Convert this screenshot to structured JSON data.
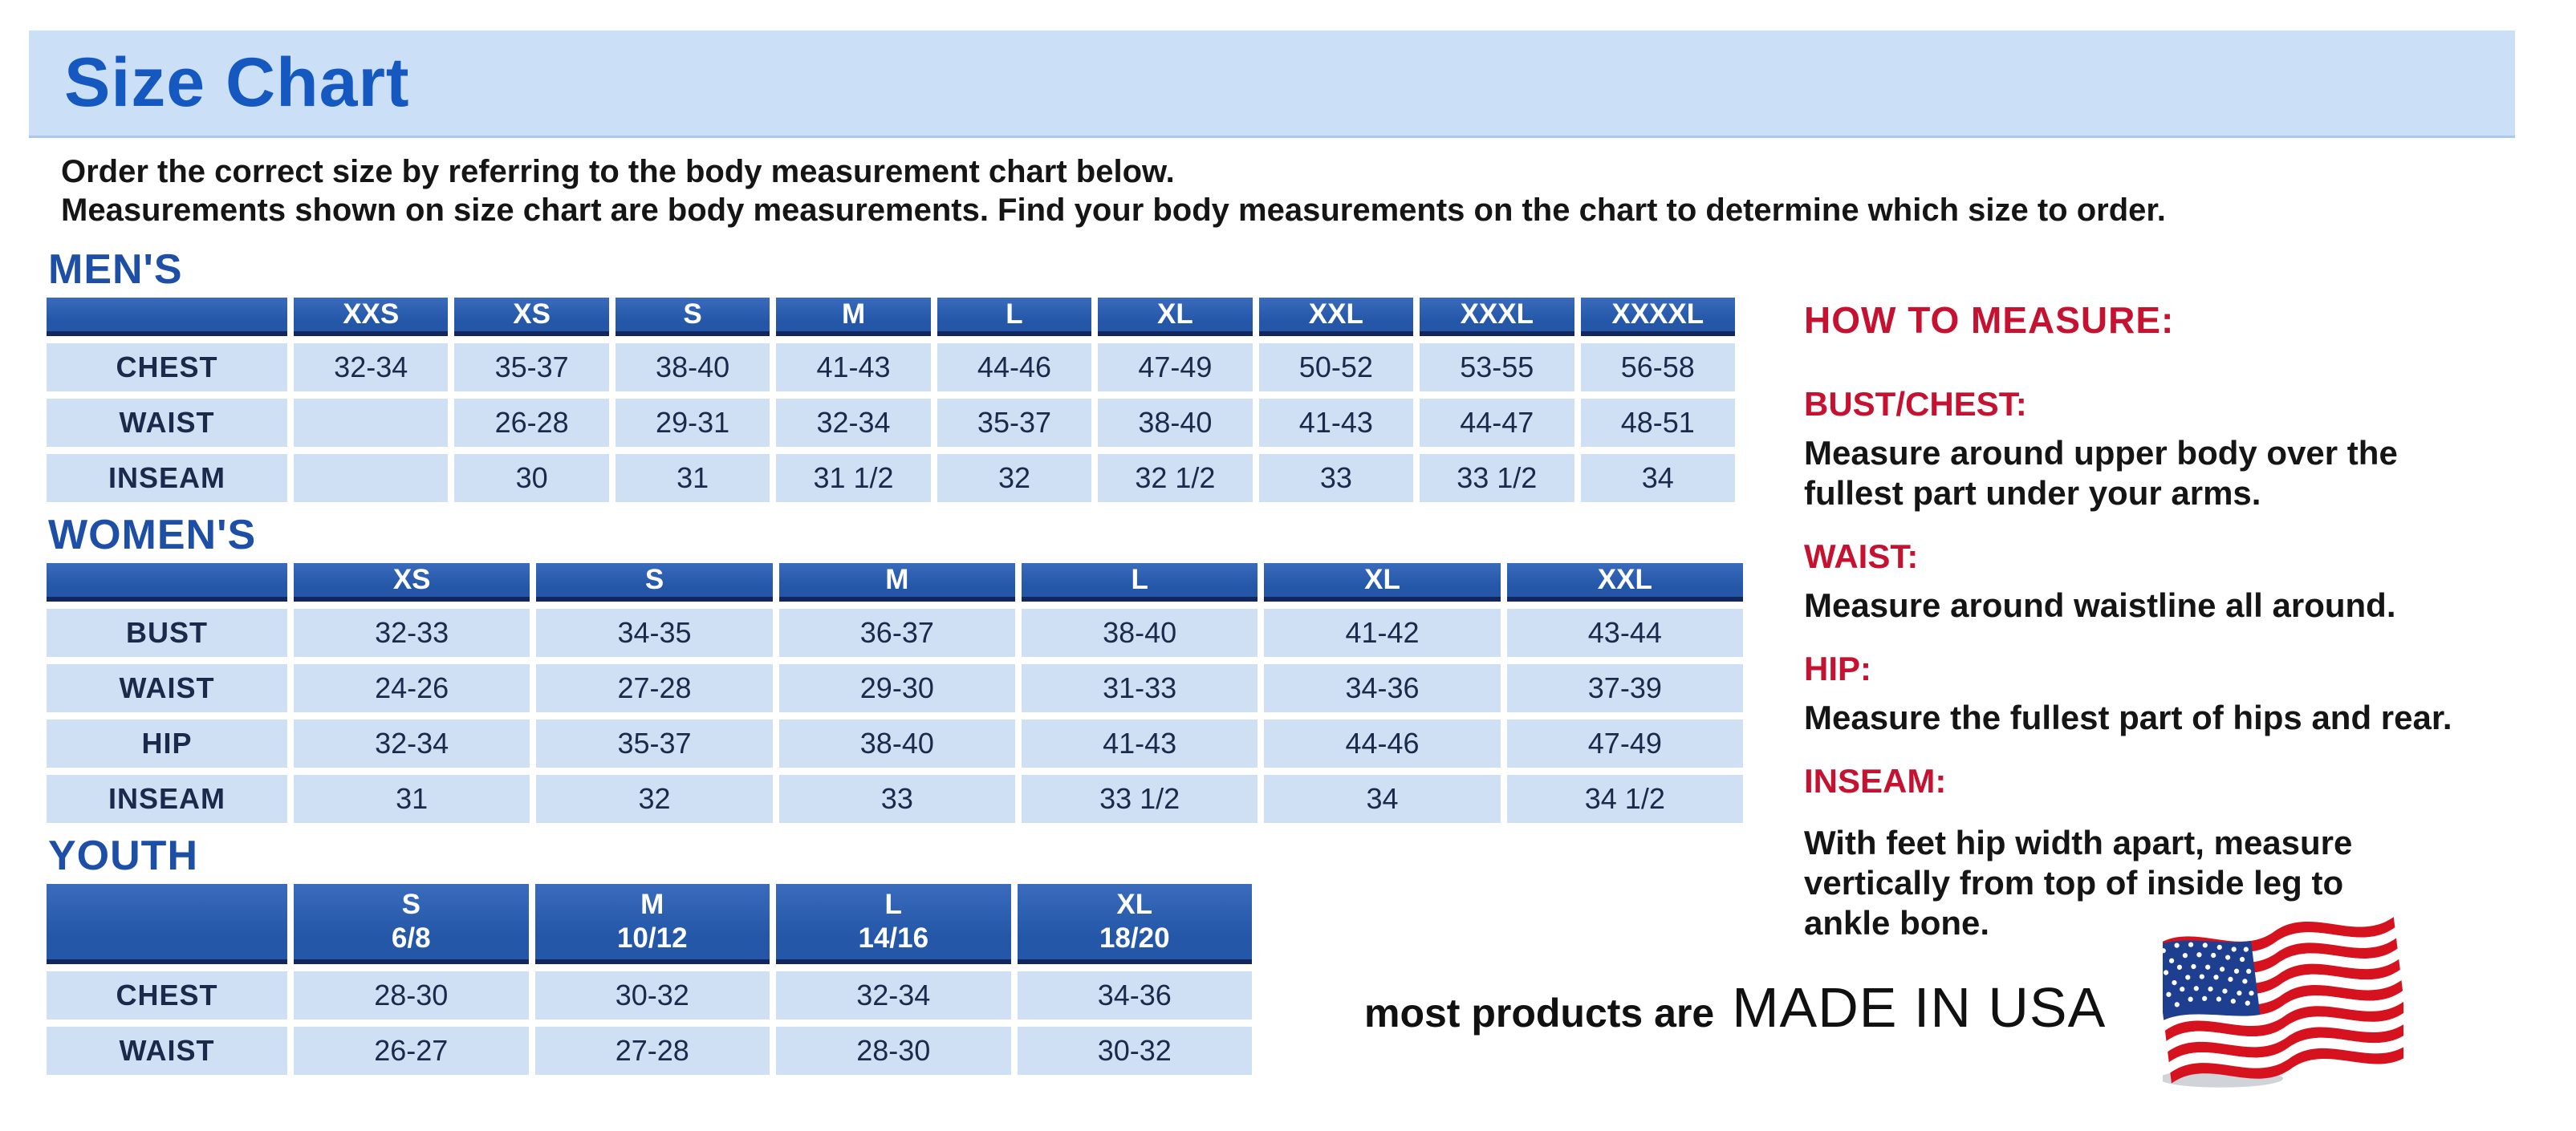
{
  "page": {
    "title": "Size Chart",
    "intro_line1": "Order the correct size by referring to the body measurement chart below.",
    "intro_line2": "Measurements shown on size chart are body measurements.  Find your body measurements on the chart to determine which size to order."
  },
  "colors": {
    "banner-bg": "#cbdff7",
    "title-blue": "#1558c0",
    "heading-blue": "#1e4fa6",
    "header-blue": "#2457a7",
    "header-edge": "#14265e",
    "cell-blue": "#cfe0f5",
    "text-dark": "#1b2a4a",
    "label-red": "#c41230",
    "flag-red": "#d6121f",
    "flag-blue": "#1e3f8f"
  },
  "tables": {
    "mens": {
      "heading": "MEN'S",
      "columns": [
        "XXS",
        "XS",
        "S",
        "M",
        "L",
        "XL",
        "XXL",
        "XXXL",
        "XXXXL"
      ],
      "rows": [
        {
          "label": "CHEST",
          "values": [
            "32-34",
            "35-37",
            "38-40",
            "41-43",
            "44-46",
            "47-49",
            "50-52",
            "53-55",
            "56-58"
          ]
        },
        {
          "label": "WAIST",
          "values": [
            "",
            "26-28",
            "29-31",
            "32-34",
            "35-37",
            "38-40",
            "41-43",
            "44-47",
            "48-51"
          ]
        },
        {
          "label": "INSEAM",
          "values": [
            "",
            "30",
            "31",
            "31 1/2",
            "32",
            "32 1/2",
            "33",
            "33 1/2",
            "34"
          ]
        }
      ]
    },
    "womens": {
      "heading": "WOMEN'S",
      "columns": [
        "XS",
        "S",
        "M",
        "L",
        "XL",
        "XXL"
      ],
      "rows": [
        {
          "label": "BUST",
          "values": [
            "32-33",
            "34-35",
            "36-37",
            "38-40",
            "41-42",
            "43-44"
          ]
        },
        {
          "label": "WAIST",
          "values": [
            "24-26",
            "27-28",
            "29-30",
            "31-33",
            "34-36",
            "37-39"
          ]
        },
        {
          "label": "HIP",
          "values": [
            "32-34",
            "35-37",
            "38-40",
            "41-43",
            "44-46",
            "47-49"
          ]
        },
        {
          "label": "INSEAM",
          "values": [
            "31",
            "32",
            "33",
            "33 1/2",
            "34",
            "34 1/2"
          ]
        }
      ]
    },
    "youth": {
      "heading": "YOUTH",
      "columns": [
        "S\n6/8",
        "M\n10/12",
        "L\n14/16",
        "XL\n18/20"
      ],
      "rows": [
        {
          "label": "CHEST",
          "values": [
            "28-30",
            "30-32",
            "32-34",
            "34-36"
          ]
        },
        {
          "label": "WAIST",
          "values": [
            "26-27",
            "27-28",
            "28-30",
            "30-32"
          ]
        }
      ]
    }
  },
  "how_to_measure": {
    "heading": "HOW TO MEASURE:",
    "sections": [
      {
        "label": "BUST/CHEST:",
        "text": "Measure around upper body over the\nfullest part under your arms."
      },
      {
        "label": "WAIST:",
        "text": "Measure around waistline all around."
      },
      {
        "label": "HIP:",
        "text": "Measure the fullest part of hips and rear."
      },
      {
        "label": "INSEAM:",
        "text": "With feet hip width apart, measure\nvertically from top of inside leg to\nankle bone."
      }
    ]
  },
  "footer": {
    "prefix": "most products are",
    "emphasis": "MADE IN USA"
  }
}
